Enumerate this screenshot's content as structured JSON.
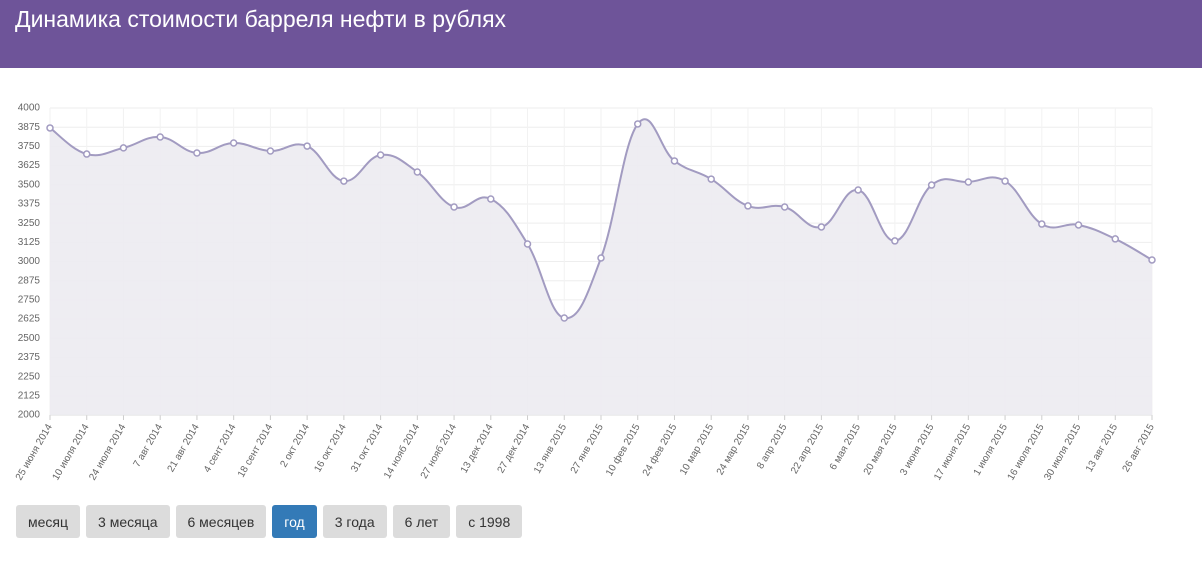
{
  "header": {
    "title": "Динамика стоимости барреля нефти в рублях"
  },
  "chart_data": {
    "type": "line",
    "categories": [
      "25 июня 2014",
      "10 июля 2014",
      "24 июля 2014",
      "7 авг 2014",
      "21 авг 2014",
      "4 сент 2014",
      "18 сент 2014",
      "2 окт 2014",
      "16 окт 2014",
      "31 окт 2014",
      "14 нояб 2014",
      "27 нояб 2014",
      "13 дек 2014",
      "27 дек 2014",
      "13 янв 2015",
      "27 янв 2015",
      "10 фев 2015",
      "24 фев 2015",
      "10 мар 2015",
      "24 мар 2015",
      "8 апр 2015",
      "22 апр 2015",
      "6 мая 2015",
      "20 мая 2015",
      "3 июня 2015",
      "17 июня 2015",
      "1 июля 2015",
      "16 июля 2015",
      "30 июля 2015",
      "13 авг 2015",
      "26 авг 2015"
    ],
    "values": [
      3870,
      3700,
      3740,
      3811,
      3707,
      3772,
      3720,
      3752,
      3524,
      3694,
      3583,
      3355,
      3407,
      3114,
      2632,
      3023,
      3896,
      3655,
      3537,
      3362,
      3355,
      3225,
      3466,
      3134,
      3498,
      3518,
      3524,
      3244,
      3238,
      3147,
      3010
    ],
    "color": "#a29bc1",
    "fill": "#ecebf1",
    "ylim": [
      2000,
      4000
    ],
    "yticks": [
      2000,
      2125,
      2250,
      2375,
      2500,
      2625,
      2750,
      2875,
      3000,
      3125,
      3250,
      3375,
      3500,
      3625,
      3750,
      3875,
      4000
    ],
    "grid": true
  },
  "range_buttons": {
    "labels": [
      "месяц",
      "3 месяца",
      "6 месяцев",
      "год",
      "3 года",
      "6 лет",
      "с 1998"
    ],
    "selected": 3
  }
}
